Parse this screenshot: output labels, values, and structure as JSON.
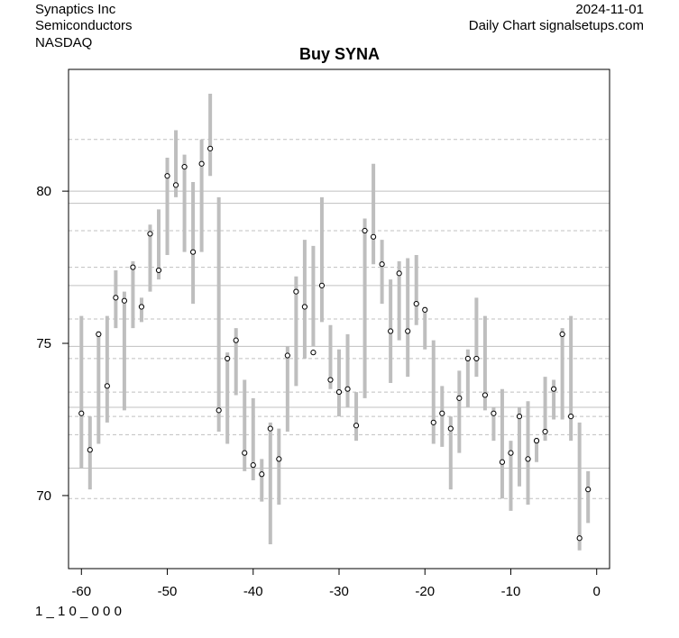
{
  "header": {
    "company": "Synaptics Inc",
    "sector": "Semiconductors",
    "exchange": "NASDAQ",
    "date": "2024-11-01",
    "source": "Daily Chart signalsetups.com"
  },
  "footer": {
    "code": "1 _ 1 0 _ 0 0 0"
  },
  "chart_data": {
    "type": "scatter",
    "title": "Buy SYNA",
    "xlabel": "",
    "ylabel": "",
    "xlim": [
      -61.5,
      1.5
    ],
    "ylim": [
      67.6,
      84.0
    ],
    "x_ticks": [
      -60,
      -50,
      -40,
      -30,
      -20,
      -10,
      0
    ],
    "x_tick_labels": [
      "-60",
      "-50",
      "-40",
      "-30",
      "-20",
      "-10",
      "0"
    ],
    "y_ticks": [
      70,
      75,
      80
    ],
    "y_tick_labels": [
      "70",
      "75",
      "80"
    ],
    "grid": "horizontal",
    "solid_hlines": [
      70.9,
      72.9,
      74.9,
      76.9,
      79.6,
      80.0
    ],
    "dashed_hlines": [
      69.9,
      72.0,
      72.6,
      73.4,
      74.5,
      75.8,
      77.5,
      78.7,
      81.7
    ],
    "colors": {
      "range_bar": "#bebebe",
      "close_point": "#000000"
    },
    "x": [
      -60,
      -59,
      -58,
      -57,
      -56,
      -55,
      -54,
      -53,
      -52,
      -51,
      -50,
      -49,
      -48,
      -47,
      -46,
      -45,
      -44,
      -43,
      -42,
      -41,
      -40,
      -39,
      -38,
      -37,
      -36,
      -35,
      -34,
      -33,
      -32,
      -31,
      -30,
      -29,
      -28,
      -27,
      -26,
      -25,
      -24,
      -23,
      -22,
      -21,
      -20,
      -19,
      -18,
      -17,
      -16,
      -15,
      -14,
      -13,
      -12,
      -11,
      -10,
      -9,
      -8,
      -7,
      -6,
      -5,
      -4,
      -3,
      -2,
      -1
    ],
    "high": [
      75.9,
      72.6,
      75.4,
      75.9,
      77.4,
      76.7,
      77.7,
      76.5,
      78.9,
      79.4,
      81.1,
      82.0,
      81.2,
      80.3,
      81.7,
      83.2,
      79.8,
      74.7,
      75.5,
      73.8,
      73.2,
      71.2,
      72.4,
      72.2,
      74.9,
      77.2,
      78.4,
      78.2,
      79.8,
      75.6,
      74.8,
      75.3,
      73.4,
      79.1,
      80.9,
      78.4,
      77.1,
      77.7,
      77.8,
      77.9,
      76.2,
      75.1,
      73.6,
      72.6,
      74.1,
      74.8,
      76.5,
      75.9,
      72.9,
      73.5,
      71.8,
      72.9,
      73.1,
      71.9,
      73.9,
      73.8,
      75.5,
      75.9,
      72.4,
      70.8
    ],
    "low": [
      70.9,
      70.2,
      71.7,
      72.4,
      75.5,
      72.8,
      75.5,
      75.7,
      76.7,
      77.1,
      77.9,
      79.8,
      78.0,
      76.3,
      78.0,
      80.5,
      72.1,
      71.7,
      73.3,
      70.8,
      70.5,
      69.8,
      68.4,
      69.7,
      72.1,
      73.6,
      74.5,
      74.9,
      75.7,
      73.5,
      72.6,
      72.9,
      71.8,
      73.2,
      77.6,
      76.3,
      73.7,
      75.1,
      73.9,
      75.6,
      74.8,
      71.7,
      71.6,
      70.2,
      71.4,
      72.9,
      73.9,
      72.8,
      71.8,
      69.9,
      69.5,
      70.3,
      69.7,
      71.1,
      71.8,
      72.5,
      72.5,
      71.8,
      68.2,
      69.1
    ],
    "close": [
      72.7,
      71.5,
      75.3,
      73.6,
      76.5,
      76.4,
      77.5,
      76.2,
      78.6,
      77.4,
      80.5,
      80.2,
      80.8,
      78.0,
      80.9,
      81.4,
      72.8,
      74.5,
      75.1,
      71.4,
      71.0,
      70.7,
      72.2,
      71.2,
      74.6,
      76.7,
      76.2,
      74.7,
      76.9,
      73.8,
      73.4,
      73.5,
      72.3,
      78.7,
      78.5,
      77.6,
      75.4,
      77.3,
      75.4,
      76.3,
      76.1,
      72.4,
      72.7,
      72.2,
      73.2,
      74.5,
      74.5,
      73.3,
      72.7,
      71.1,
      71.4,
      72.6,
      71.2,
      71.8,
      72.1,
      73.5,
      75.3,
      72.6,
      68.6,
      70.2
    ]
  }
}
